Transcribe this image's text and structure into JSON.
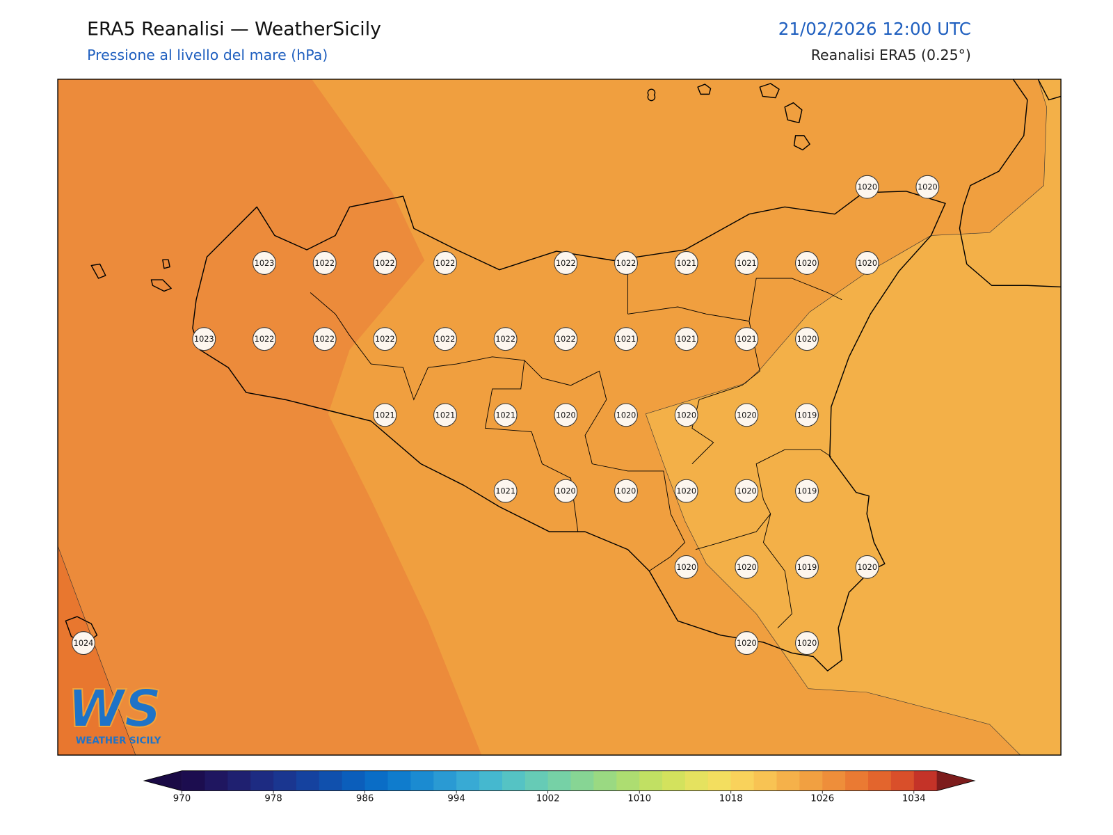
{
  "header": {
    "title": "ERA5 Reanalisi — WeatherSicily",
    "subtitle": "Pressione al livello del mare (hPa)",
    "valid_time": "21/02/2026 12:00 UTC",
    "source": "Reanalisi ERA5 (0.25°)"
  },
  "map": {
    "stations": [
      1020,
      1020,
      1023,
      1022,
      1022,
      1022,
      1022,
      1022,
      1021,
      1021,
      1020,
      1020,
      1023,
      1022,
      1022,
      1022,
      1022,
      1022,
      1022,
      1021,
      1021,
      1021,
      1020,
      1021,
      1021,
      1021,
      1020,
      1020,
      1020,
      1020,
      1019,
      1021,
      1020,
      1020,
      1020,
      1020,
      1019,
      1020,
      1020,
      1019,
      1020,
      1024,
      1020,
      1020
    ]
  },
  "colorbar": {
    "range": [
      970,
      1036
    ],
    "ticks": [
      970,
      978,
      986,
      994,
      1002,
      1010,
      1018,
      1026,
      1034
    ],
    "colors": [
      "#1c0d4f",
      "#1f1660",
      "#1f2070",
      "#1d2b82",
      "#1a3690",
      "#15429f",
      "#1050ad",
      "#0b5ebb",
      "#0a6dc6",
      "#0f7ccd",
      "#1b8bd1",
      "#2a9ad3",
      "#38aad4",
      "#45b8cf",
      "#55c3c4",
      "#66cbb6",
      "#76d1a6",
      "#87d594",
      "#9ad982",
      "#addd71",
      "#c1e063",
      "#d3e25d",
      "#e5e25f",
      "#f3de5f",
      "#f9d25b",
      "#f8c353",
      "#f5b14a",
      "#f1a041",
      "#ee8e3a",
      "#ea7a33",
      "#e3652d",
      "#d94f2a",
      "#c43328"
    ],
    "under_color": "#1a0a45",
    "over_color": "#7d1c1c"
  },
  "logo": {
    "mark": "WS",
    "text": "WEATHER SICILY"
  }
}
